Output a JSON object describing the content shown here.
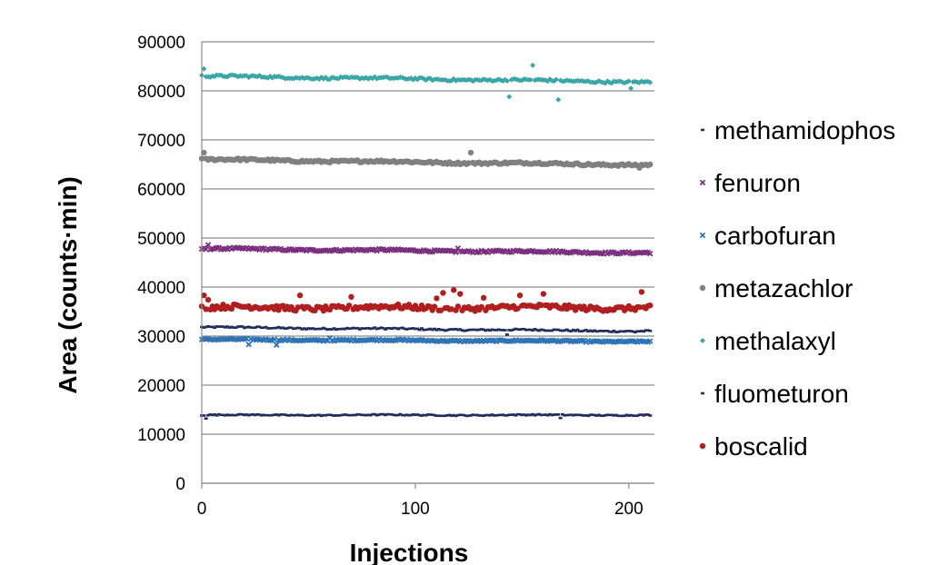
{
  "chart_data": {
    "type": "scatter",
    "xlabel": "Injections",
    "ylabel": "Area (counts·min)",
    "xlim": [
      0,
      212
    ],
    "ylim": [
      0,
      90000
    ],
    "x_ticks": [
      "0",
      "100",
      "200"
    ],
    "y_ticks": [
      "0",
      "10000",
      "20000",
      "30000",
      "40000",
      "50000",
      "60000",
      "70000",
      "80000",
      "90000"
    ],
    "grid": "horizontal",
    "legend_position": "right",
    "series": [
      {
        "name": "methamidophos",
        "color": "#1f2d5a",
        "marker": "dash",
        "n_points": 211,
        "start": 31800,
        "end": 31000,
        "spread": 260,
        "outliers": [
          [
            143,
            30300
          ],
          [
            203,
            30800
          ]
        ]
      },
      {
        "name": "fenuron",
        "color": "#7a2f7f",
        "marker": "x",
        "n_points": 211,
        "start": 47800,
        "end": 47000,
        "spread": 300,
        "outliers": [
          [
            3,
            48600
          ],
          [
            120,
            47900
          ]
        ]
      },
      {
        "name": "carbofuran",
        "color": "#2e74b5",
        "marker": "x",
        "n_points": 211,
        "start": 29300,
        "end": 28900,
        "spread": 220,
        "outliers": [
          [
            22,
            28300
          ],
          [
            35,
            28200
          ],
          [
            60,
            29600
          ]
        ]
      },
      {
        "name": "metazachlor",
        "color": "#808080",
        "marker": "circle",
        "n_points": 211,
        "start": 66000,
        "end": 64900,
        "spread": 320,
        "outliers": [
          [
            1,
            67400
          ],
          [
            126,
            67400
          ],
          [
            205,
            64300
          ]
        ]
      },
      {
        "name": "methalaxyl",
        "color": "#3aa6a6",
        "marker": "diamond",
        "n_points": 211,
        "start": 83000,
        "end": 81800,
        "spread": 330,
        "outliers": [
          [
            1,
            84500
          ],
          [
            144,
            78800
          ],
          [
            155,
            85200
          ],
          [
            167,
            78200
          ],
          [
            201,
            80500
          ]
        ]
      },
      {
        "name": "fluometuron",
        "color": "#1f2d5a",
        "marker": "dash",
        "n_points": 211,
        "start": 13900,
        "end": 13900,
        "spread": 180,
        "outliers": [
          [
            2,
            13200
          ],
          [
            168,
            13300
          ]
        ]
      },
      {
        "name": "boscalid",
        "color": "#b01f1f",
        "marker": "circle",
        "n_points": 211,
        "start": 35800,
        "end": 35800,
        "spread": 700,
        "outliers": [
          [
            1,
            38300
          ],
          [
            3,
            37400
          ],
          [
            46,
            38300
          ],
          [
            70,
            38000
          ],
          [
            110,
            37700
          ],
          [
            113,
            38800
          ],
          [
            118,
            39400
          ],
          [
            121,
            38600
          ],
          [
            132,
            37800
          ],
          [
            149,
            38300
          ],
          [
            160,
            38600
          ],
          [
            206,
            39000
          ]
        ]
      }
    ]
  }
}
